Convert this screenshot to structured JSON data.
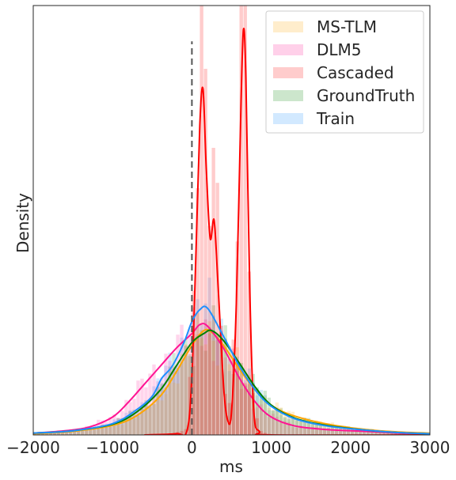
{
  "chart_data": {
    "type": "histogram-kde",
    "title": "",
    "xlabel": "ms",
    "ylabel": "Density",
    "xlim": [
      -2000,
      3000
    ],
    "xticks": [
      -2000,
      -1000,
      0,
      1000,
      2000,
      3000
    ],
    "xtick_labels": [
      "−2000",
      "−1000",
      "0",
      "1000",
      "2000",
      "3000"
    ],
    "y_ticks_shown": false,
    "grid": false,
    "legend_position": "top-right",
    "reference_line": {
      "x": 0,
      "style": "dashed",
      "color": "#555555"
    },
    "series": [
      {
        "name": "MS-TLM",
        "color": "#ffa500",
        "kde": [
          [
            -2000,
            0.2
          ],
          [
            -1500,
            0.6
          ],
          [
            -1000,
            1.6
          ],
          [
            -700,
            3.2
          ],
          [
            -400,
            6.5
          ],
          [
            -200,
            10.5
          ],
          [
            0,
            15.0
          ],
          [
            150,
            17.5
          ],
          [
            250,
            17.2
          ],
          [
            400,
            15.0
          ],
          [
            600,
            11.0
          ],
          [
            800,
            7.5
          ],
          [
            1000,
            5.0
          ],
          [
            1200,
            3.6
          ],
          [
            1500,
            2.4
          ],
          [
            1800,
            1.6
          ],
          [
            2200,
            0.9
          ],
          [
            2600,
            0.5
          ],
          [
            3000,
            0.3
          ]
        ],
        "hist_peak": 42
      },
      {
        "name": "DLM5",
        "color": "#ff1493",
        "kde": [
          [
            -2000,
            0.3
          ],
          [
            -1600,
            0.7
          ],
          [
            -1300,
            1.3
          ],
          [
            -1000,
            3.0
          ],
          [
            -800,
            5.5
          ],
          [
            -600,
            8.5
          ],
          [
            -400,
            11.5
          ],
          [
            -200,
            14.5
          ],
          [
            0,
            17.0
          ],
          [
            100,
            18.5
          ],
          [
            200,
            18.2
          ],
          [
            400,
            14.5
          ],
          [
            600,
            9.5
          ],
          [
            800,
            5.5
          ],
          [
            1000,
            3.0
          ],
          [
            1300,
            1.5
          ],
          [
            1700,
            0.9
          ],
          [
            2200,
            0.6
          ],
          [
            2600,
            0.3
          ],
          [
            3000,
            0.1
          ]
        ],
        "hist_peak": 30
      },
      {
        "name": "Cascaded",
        "color": "#ff0000",
        "kde": [
          [
            -600,
            0
          ],
          [
            -200,
            0.2
          ],
          [
            -60,
            0.8
          ],
          [
            0,
            10.0
          ],
          [
            50,
            30.0
          ],
          [
            100,
            52.0
          ],
          [
            140,
            58.0
          ],
          [
            180,
            45.0
          ],
          [
            230,
            33.0
          ],
          [
            280,
            36.0
          ],
          [
            330,
            25.0
          ],
          [
            400,
            8.0
          ],
          [
            450,
            2.5
          ],
          [
            500,
            4.0
          ],
          [
            560,
            22.0
          ],
          [
            620,
            56.0
          ],
          [
            650,
            68.0
          ],
          [
            680,
            60.0
          ],
          [
            730,
            24.0
          ],
          [
            780,
            4.0
          ],
          [
            850,
            0.6
          ],
          [
            1000,
            0
          ],
          [
            3000,
            0
          ]
        ],
        "hist_peak": 90
      },
      {
        "name": "GroundTruth",
        "color": "#008000",
        "kde": [
          [
            -2000,
            0.3
          ],
          [
            -1500,
            0.7
          ],
          [
            -1000,
            1.8
          ],
          [
            -700,
            3.8
          ],
          [
            -400,
            7.5
          ],
          [
            -200,
            11.5
          ],
          [
            0,
            15.5
          ],
          [
            150,
            17.0
          ],
          [
            250,
            17.5
          ],
          [
            400,
            15.8
          ],
          [
            600,
            12.0
          ],
          [
            800,
            8.0
          ],
          [
            1000,
            5.0
          ],
          [
            1300,
            2.8
          ],
          [
            1700,
            1.6
          ],
          [
            2200,
            0.8
          ],
          [
            2600,
            0.4
          ],
          [
            3000,
            0.2
          ]
        ],
        "hist_peak": 24
      },
      {
        "name": "Train",
        "color": "#1e90ff",
        "kde": [
          [
            -2000,
            0.3
          ],
          [
            -1500,
            0.7
          ],
          [
            -1000,
            1.9
          ],
          [
            -700,
            4.2
          ],
          [
            -500,
            6.5
          ],
          [
            -380,
            9.5
          ],
          [
            -250,
            11.5
          ],
          [
            -100,
            15.5
          ],
          [
            0,
            19.0
          ],
          [
            100,
            21.0
          ],
          [
            200,
            21.2
          ],
          [
            400,
            16.5
          ],
          [
            600,
            11.5
          ],
          [
            800,
            7.5
          ],
          [
            1000,
            4.8
          ],
          [
            1300,
            2.7
          ],
          [
            1700,
            1.5
          ],
          [
            2200,
            0.8
          ],
          [
            2600,
            0.4
          ],
          [
            3000,
            0.2
          ]
        ],
        "hist_peak": 22
      }
    ],
    "ylim": [
      0,
      72
    ]
  }
}
